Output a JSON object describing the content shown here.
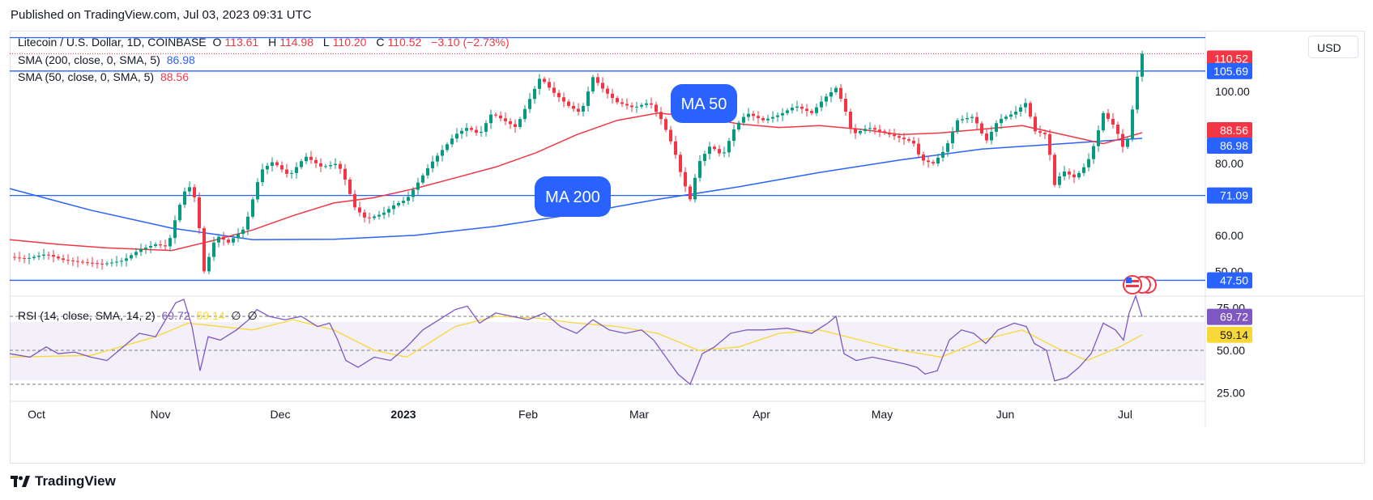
{
  "published": "Published on TradingView.com, Jul 03, 2023 09:31 UTC",
  "header": {
    "symbol": "Litecoin / U.S. Dollar, 1D, COINBASE",
    "open_label": "O",
    "open": "113.61",
    "high_label": "H",
    "high": "114.98",
    "low_label": "L",
    "low": "110.20",
    "close_label": "C",
    "close": "110.52",
    "change": "−3.10 (−2.73%)"
  },
  "sma200_legend": {
    "label": "SMA (200, close, 0, SMA, 5)",
    "value": "86.98"
  },
  "sma50_legend": {
    "label": "SMA (50, close, 0, SMA, 5)",
    "value": "88.56"
  },
  "rsi_legend": {
    "label": "RSI (14, close, SMA, 14, 2)",
    "rsi": "69.72",
    "sma": "59.14",
    "ext1": "∅",
    "ext2": "∅"
  },
  "currency_button": "USD",
  "annotations": {
    "ma50": "MA 50",
    "ma200": "MA 200"
  },
  "footer": "TradingView",
  "colors": {
    "up": "#089981",
    "down": "#f23645",
    "sma50": "#f23645",
    "sma200": "#2962ff",
    "rsi": "#7e57c2",
    "rsi_sma": "#f7d838",
    "hline": "#2962ff",
    "badge": "#2962ff"
  },
  "chart_data": {
    "type": "candlestick",
    "price_axis": {
      "ticks": [
        "100.00",
        "80.00",
        "60.00",
        "50.00"
      ],
      "extra_tick": "90.00",
      "range": [
        44,
        116
      ]
    },
    "time_axis": {
      "labels": [
        "Oct",
        "Nov",
        "Dec",
        "2023",
        "Feb",
        "Mar",
        "Apr",
        "May",
        "Jun",
        "Jul"
      ]
    },
    "horizontal_lines": [
      114.98,
      105.69,
      71.09,
      47.5
    ],
    "price_labels": [
      {
        "value": "110.52",
        "kind": "last"
      },
      {
        "value": "105.69",
        "kind": "line"
      },
      {
        "value": "88.56",
        "kind": "sma50"
      },
      {
        "value": "86.98",
        "kind": "sma200"
      },
      {
        "value": "71.09",
        "kind": "line"
      },
      {
        "value": "47.50",
        "kind": "line"
      }
    ],
    "close_series": [
      [
        0,
        54.0
      ],
      [
        20,
        53.5
      ],
      [
        45,
        54.8
      ],
      [
        65,
        53.2
      ],
      [
        90,
        52.5
      ],
      [
        115,
        52.0
      ],
      [
        140,
        53.0
      ],
      [
        160,
        56.0
      ],
      [
        180,
        57.5
      ],
      [
        195,
        56.8
      ],
      [
        205,
        65.0
      ],
      [
        215,
        72.0
      ],
      [
        225,
        74.0
      ],
      [
        232,
        66.0
      ],
      [
        240,
        50.0
      ],
      [
        255,
        60.0
      ],
      [
        270,
        58.0
      ],
      [
        290,
        62.0
      ],
      [
        300,
        70.0
      ],
      [
        310,
        78.0
      ],
      [
        325,
        80.5
      ],
      [
        345,
        76.5
      ],
      [
        365,
        82.0
      ],
      [
        385,
        79.0
      ],
      [
        405,
        80.0
      ],
      [
        415,
        75.0
      ],
      [
        425,
        68.0
      ],
      [
        440,
        64.5
      ],
      [
        460,
        66.0
      ],
      [
        475,
        68.5
      ],
      [
        490,
        70.0
      ],
      [
        505,
        75.0
      ],
      [
        520,
        80.0
      ],
      [
        535,
        84.0
      ],
      [
        550,
        88.0
      ],
      [
        565,
        90.0
      ],
      [
        580,
        88.0
      ],
      [
        595,
        94.0
      ],
      [
        610,
        92.0
      ],
      [
        625,
        90.0
      ],
      [
        640,
        97.0
      ],
      [
        655,
        104.0
      ],
      [
        670,
        100.0
      ],
      [
        690,
        96.0
      ],
      [
        705,
        94.0
      ],
      [
        720,
        104.0
      ],
      [
        735,
        100.0
      ],
      [
        750,
        97.0
      ],
      [
        770,
        95.5
      ],
      [
        790,
        97.0
      ],
      [
        805,
        92.0
      ],
      [
        820,
        84.0
      ],
      [
        830,
        76.0
      ],
      [
        840,
        70.0
      ],
      [
        850,
        80.0
      ],
      [
        865,
        85.0
      ],
      [
        880,
        82.0
      ],
      [
        895,
        90.0
      ],
      [
        910,
        94.0
      ],
      [
        930,
        92.0
      ],
      [
        950,
        93.5
      ],
      [
        970,
        96.0
      ],
      [
        990,
        94.0
      ],
      [
        1005,
        98.0
      ],
      [
        1020,
        101.0
      ],
      [
        1030,
        96.0
      ],
      [
        1040,
        88.0
      ],
      [
        1060,
        90.0
      ],
      [
        1080,
        88.5
      ],
      [
        1100,
        87.0
      ],
      [
        1115,
        86.0
      ],
      [
        1125,
        81.0
      ],
      [
        1140,
        80.0
      ],
      [
        1155,
        84.0
      ],
      [
        1170,
        92.0
      ],
      [
        1190,
        93.0
      ],
      [
        1205,
        86.0
      ],
      [
        1220,
        92.0
      ],
      [
        1240,
        94.0
      ],
      [
        1255,
        97.0
      ],
      [
        1265,
        89.0
      ],
      [
        1280,
        88.0
      ],
      [
        1290,
        74.0
      ],
      [
        1300,
        78.0
      ],
      [
        1315,
        76.0
      ],
      [
        1330,
        80.0
      ],
      [
        1340,
        86.0
      ],
      [
        1350,
        94.0
      ],
      [
        1365,
        90.0
      ],
      [
        1375,
        84.0
      ],
      [
        1382,
        88.0
      ],
      [
        1390,
        102.0
      ],
      [
        1398,
        110.52
      ]
    ],
    "sma50_series": [
      [
        0,
        58.8
      ],
      [
        60,
        57.5
      ],
      [
        120,
        56.5
      ],
      [
        200,
        55.8
      ],
      [
        250,
        58.5
      ],
      [
        300,
        61.5
      ],
      [
        350,
        65.5
      ],
      [
        400,
        69.0
      ],
      [
        450,
        70.5
      ],
      [
        500,
        73.0
      ],
      [
        550,
        76.0
      ],
      [
        600,
        79.0
      ],
      [
        650,
        83.0
      ],
      [
        700,
        88.0
      ],
      [
        750,
        92.0
      ],
      [
        800,
        94.0
      ],
      [
        850,
        93.0
      ],
      [
        900,
        91.0
      ],
      [
        950,
        90.0
      ],
      [
        1000,
        90.5
      ],
      [
        1050,
        89.5
      ],
      [
        1100,
        88.0
      ],
      [
        1150,
        88.5
      ],
      [
        1200,
        89.5
      ],
      [
        1250,
        90.5
      ],
      [
        1300,
        88.0
      ],
      [
        1350,
        85.5
      ],
      [
        1398,
        88.56
      ]
    ],
    "sma200_series": [
      [
        0,
        73.0
      ],
      [
        100,
        67.0
      ],
      [
        200,
        62.0
      ],
      [
        300,
        58.8
      ],
      [
        400,
        58.9
      ],
      [
        500,
        60.0
      ],
      [
        600,
        62.5
      ],
      [
        700,
        66.0
      ],
      [
        800,
        70.0
      ],
      [
        900,
        73.5
      ],
      [
        1000,
        77.5
      ],
      [
        1100,
        81.0
      ],
      [
        1200,
        84.0
      ],
      [
        1300,
        85.5
      ],
      [
        1398,
        86.98
      ]
    ],
    "rsi_axis": {
      "ticks": [
        "75.00",
        "50.00",
        "25.00"
      ],
      "range": [
        20,
        80
      ],
      "bands": [
        30,
        70
      ]
    },
    "rsi_series": [
      [
        0,
        48
      ],
      [
        25,
        46
      ],
      [
        45,
        52
      ],
      [
        60,
        48
      ],
      [
        80,
        49
      ],
      [
        100,
        46
      ],
      [
        120,
        44
      ],
      [
        140,
        52
      ],
      [
        160,
        60
      ],
      [
        180,
        58
      ],
      [
        195,
        70
      ],
      [
        205,
        78
      ],
      [
        215,
        80
      ],
      [
        225,
        64
      ],
      [
        235,
        38
      ],
      [
        245,
        58
      ],
      [
        260,
        56
      ],
      [
        280,
        62
      ],
      [
        295,
        68
      ],
      [
        305,
        74
      ],
      [
        320,
        70
      ],
      [
        340,
        68
      ],
      [
        360,
        70
      ],
      [
        380,
        64
      ],
      [
        395,
        66
      ],
      [
        405,
        56
      ],
      [
        415,
        44
      ],
      [
        430,
        40
      ],
      [
        450,
        46
      ],
      [
        470,
        44
      ],
      [
        490,
        52
      ],
      [
        510,
        62
      ],
      [
        530,
        68
      ],
      [
        550,
        74
      ],
      [
        565,
        76
      ],
      [
        580,
        66
      ],
      [
        600,
        72
      ],
      [
        620,
        70
      ],
      [
        640,
        68
      ],
      [
        660,
        72
      ],
      [
        680,
        64
      ],
      [
        700,
        60
      ],
      [
        720,
        68
      ],
      [
        740,
        62
      ],
      [
        760,
        60
      ],
      [
        780,
        62
      ],
      [
        795,
        56
      ],
      [
        810,
        46
      ],
      [
        825,
        36
      ],
      [
        840,
        30
      ],
      [
        855,
        48
      ],
      [
        870,
        52
      ],
      [
        890,
        60
      ],
      [
        910,
        62
      ],
      [
        930,
        62
      ],
      [
        960,
        63
      ],
      [
        990,
        60
      ],
      [
        1010,
        66
      ],
      [
        1020,
        70
      ],
      [
        1030,
        48
      ],
      [
        1045,
        44
      ],
      [
        1065,
        46
      ],
      [
        1085,
        44
      ],
      [
        1105,
        42
      ],
      [
        1120,
        40
      ],
      [
        1130,
        36
      ],
      [
        1145,
        38
      ],
      [
        1160,
        56
      ],
      [
        1175,
        62
      ],
      [
        1190,
        60
      ],
      [
        1205,
        54
      ],
      [
        1220,
        62
      ],
      [
        1240,
        66
      ],
      [
        1255,
        64
      ],
      [
        1265,
        54
      ],
      [
        1280,
        50
      ],
      [
        1290,
        32
      ],
      [
        1305,
        34
      ],
      [
        1320,
        40
      ],
      [
        1335,
        48
      ],
      [
        1350,
        66
      ],
      [
        1365,
        62
      ],
      [
        1375,
        56
      ],
      [
        1382,
        72
      ],
      [
        1390,
        82
      ],
      [
        1398,
        69.72
      ]
    ],
    "rsi_sma_series": [
      [
        0,
        46
      ],
      [
        100,
        47
      ],
      [
        180,
        58
      ],
      [
        220,
        66
      ],
      [
        300,
        62
      ],
      [
        350,
        68
      ],
      [
        400,
        62
      ],
      [
        450,
        50
      ],
      [
        490,
        46
      ],
      [
        550,
        64
      ],
      [
        600,
        70
      ],
      [
        650,
        69
      ],
      [
        700,
        66
      ],
      [
        750,
        64
      ],
      [
        800,
        60
      ],
      [
        850,
        50
      ],
      [
        900,
        52
      ],
      [
        950,
        60
      ],
      [
        1000,
        62
      ],
      [
        1050,
        56
      ],
      [
        1100,
        50
      ],
      [
        1150,
        46
      ],
      [
        1200,
        56
      ],
      [
        1250,
        62
      ],
      [
        1290,
        52
      ],
      [
        1330,
        44
      ],
      [
        1370,
        52
      ],
      [
        1398,
        59.14
      ]
    ]
  }
}
